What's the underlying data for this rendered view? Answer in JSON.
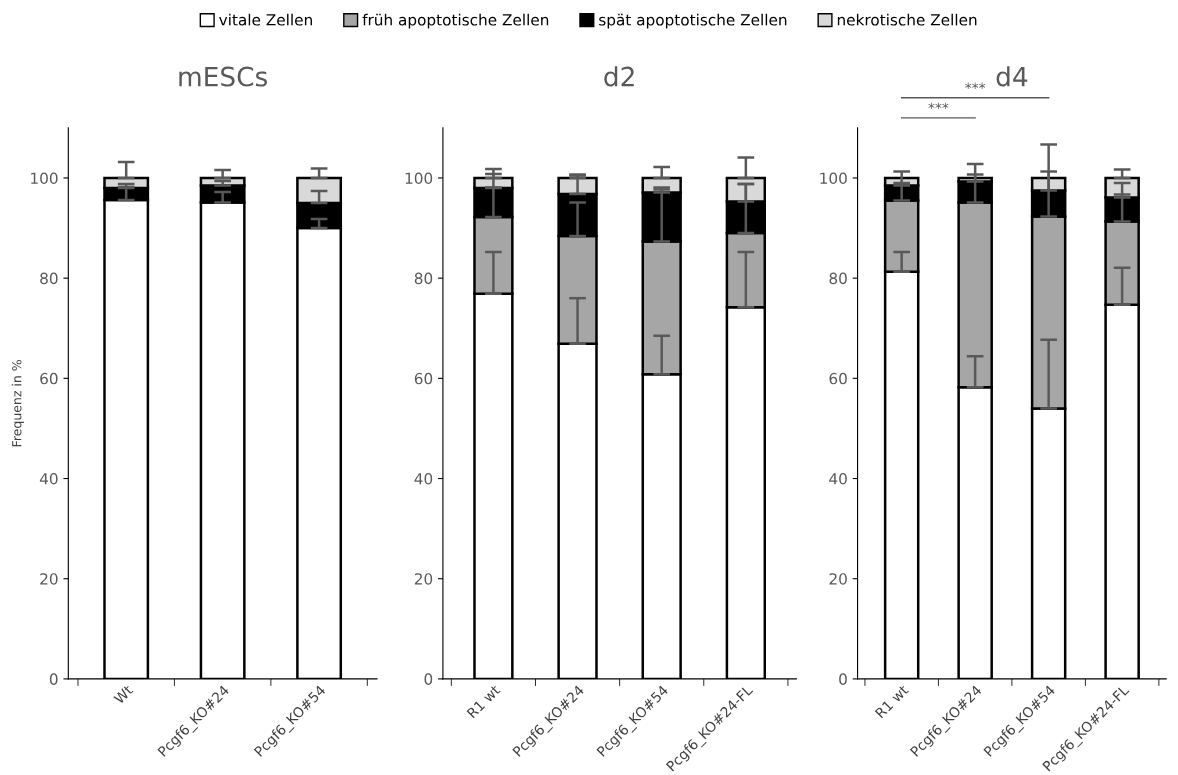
{
  "chart_data": [
    {
      "type": "bar",
      "title": "mESCs",
      "ylabel": "Frequenz in %",
      "stacked": true,
      "legend": "top",
      "categories": [
        "Wt",
        "Pcgf6_KO#24",
        "Pcgf6_KO#54"
      ],
      "series": [
        {
          "name": "vitale Zellen",
          "color": "#ffffff",
          "values": [
            95.6,
            95.1,
            90.0
          ],
          "errors": [
            [
              95.6,
              98.2
            ],
            [
              95.1,
              97.2
            ],
            [
              90.0,
              91.8
            ]
          ]
        },
        {
          "name": "früh apoptotische Zellen",
          "color": "#a6a6a6",
          "values": [
            0,
            0,
            0
          ]
        },
        {
          "name": "spät apoptotische Zellen",
          "color": "#000000",
          "values": [
            2.4,
            3.4,
            5.0
          ],
          "errors": [
            [
              98.0,
              98.8
            ],
            [
              98.5,
              99.4
            ],
            [
              95.0,
              97.4
            ]
          ]
        },
        {
          "name": "nekrotische Zellen",
          "color": "#d9d9d9",
          "values": [
            2.0,
            1.5,
            5.0
          ],
          "errors": [
            [
              100.0,
              103.2
            ],
            [
              100.0,
              101.6
            ],
            [
              100.0,
              101.9
            ]
          ]
        }
      ],
      "ylim": [
        0,
        110
      ],
      "yticks": [
        0,
        20,
        40,
        60,
        80,
        100
      ],
      "grid": false
    },
    {
      "type": "bar",
      "title": "d2",
      "stacked": true,
      "categories": [
        "R1 wt",
        "Pcgf6_KO#24",
        "Pcgf6_KO#54",
        "Pcgf6_KO#24-FL"
      ],
      "series": [
        {
          "color": "#ffffff",
          "values": [
            76.9,
            66.9,
            60.8,
            74.2
          ],
          "errors": [
            [
              76.9,
              85.2
            ],
            [
              66.9,
              76.0
            ],
            [
              60.8,
              68.5
            ],
            [
              74.2,
              85.2
            ]
          ]
        },
        {
          "color": "#a6a6a6",
          "values": [
            15.3,
            21.5,
            26.5,
            14.8
          ],
          "errors": [
            [
              92.2,
              98.1
            ],
            [
              88.4,
              95.1
            ],
            [
              87.3,
              98.1
            ],
            [
              89.0,
              98.8
            ]
          ]
        },
        {
          "color": "#000000",
          "values": [
            5.8,
            8.4,
            9.8,
            6.3
          ],
          "errors": [
            [
              98.0,
              100.8
            ],
            [
              96.8,
              100.5
            ],
            [
              97.1,
              97.7
            ],
            [
              95.3,
              98.8
            ]
          ]
        },
        {
          "color": "#d9d9d9",
          "values": [
            2.0,
            3.2,
            2.9,
            4.7
          ],
          "errors": [
            [
              100.0,
              101.8
            ],
            [
              100.0,
              100.7
            ],
            [
              100.0,
              102.2
            ],
            [
              100.0,
              104.1
            ]
          ]
        }
      ],
      "ylim": [
        0,
        110
      ],
      "yticks": [
        0,
        20,
        40,
        60,
        80,
        100
      ],
      "grid": false
    },
    {
      "type": "bar",
      "title": "d4",
      "stacked": true,
      "categories": [
        "R1 wt",
        "Pcgf6_KO#24",
        "Pcgf6_KO#54",
        "Pcgf6_KO#24-FL"
      ],
      "series": [
        {
          "color": "#ffffff",
          "values": [
            81.3,
            58.2,
            54.0,
            74.7
          ],
          "errors": [
            [
              81.3,
              85.2
            ],
            [
              58.2,
              64.4
            ],
            [
              54.0,
              67.7
            ],
            [
              74.7,
              82.1
            ]
          ]
        },
        {
          "color": "#a6a6a6",
          "values": [
            14.2,
            36.9,
            38.3,
            16.6
          ],
          "errors": [
            [
              95.5,
              99.0
            ],
            [
              95.1,
              100.7
            ],
            [
              92.3,
              101.3
            ],
            [
              91.3,
              96.7
            ]
          ]
        },
        {
          "color": "#000000",
          "values": [
            3.0,
            4.2,
            5.2,
            4.8
          ],
          "errors": [
            [
              98.5,
              101.3
            ],
            [
              99.3,
              102.8
            ],
            [
              97.5,
              106.7
            ],
            [
              96.1,
              99.0
            ]
          ]
        },
        {
          "color": "#d9d9d9",
          "values": [
            1.5,
            0.7,
            2.5,
            3.9
          ],
          "errors": [
            null,
            null,
            null,
            [
              100.0,
              101.7
            ]
          ]
        }
      ],
      "annotations": [
        "***",
        "***"
      ],
      "ylim": [
        0,
        110
      ],
      "yticks": [
        0,
        20,
        40,
        60,
        80,
        100
      ],
      "grid": false
    }
  ]
}
